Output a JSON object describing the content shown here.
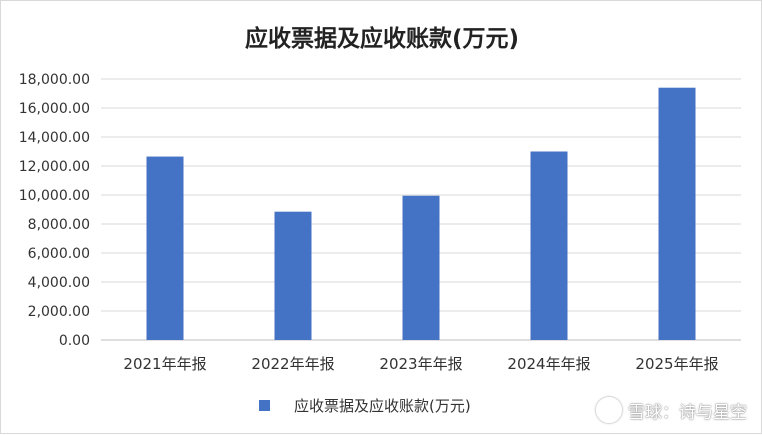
{
  "chart_data": {
    "type": "bar",
    "title": "应收票据及应收账款(万元)",
    "categories": [
      "2021年年报",
      "2022年年报",
      "2023年年报",
      "2024年年报",
      "2025年年报"
    ],
    "series": [
      {
        "name": "应收票据及应收账款(万元)",
        "values": [
          12650,
          8850,
          9950,
          13000,
          17400
        ]
      }
    ],
    "ylim": [
      0,
      18000
    ],
    "yticks": [
      0,
      2000,
      4000,
      6000,
      8000,
      10000,
      12000,
      14000,
      16000,
      18000
    ],
    "ytick_labels": [
      "0.00",
      "2,000.00",
      "4,000.00",
      "6,000.00",
      "8,000.00",
      "10,000.00",
      "12,000.00",
      "14,000.00",
      "16,000.00",
      "18,000.00"
    ],
    "xlabel": "",
    "ylabel": "",
    "grid": true,
    "legend_position": "bottom",
    "bar_color": "#4472c4"
  },
  "watermark": {
    "text": "雪球：诗与星空"
  }
}
